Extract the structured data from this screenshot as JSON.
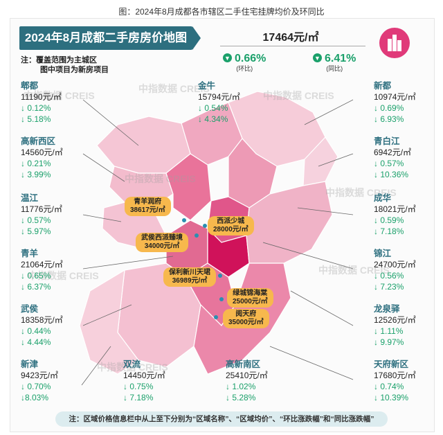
{
  "figure_caption": "图：2024年8月成都各市辖区二手住宅挂牌均价及环同比",
  "header": {
    "title": "2024年8月成都二手房房价地图"
  },
  "note": {
    "line1": "注：覆盖范围为主城区",
    "line2": "图中项目为新房项目"
  },
  "summary": {
    "price": "17464元/㎡",
    "mom_value": "0.66%",
    "mom_label": "(环比)",
    "yoy_value": "6.41%",
    "yoy_label": "(同比)"
  },
  "districts": {
    "pidu": {
      "name": "郫都",
      "price": "11190元/㎡",
      "mom": "↓ 0.12%",
      "yoy": "↓ 5.18%"
    },
    "gaoxinxi": {
      "name": "高新西区",
      "price": "14560元/㎡",
      "mom": "↓ 0.21%",
      "yoy": "↓ 3.99%"
    },
    "wenjiang": {
      "name": "温江",
      "price": "11776元/㎡",
      "mom": "↓ 0.57%",
      "yoy": "↓ 5.97%"
    },
    "qingyang": {
      "name": "青羊",
      "price": "21064元/㎡",
      "mom": "↓ 0.65%",
      "yoy": "↓ 6.37%"
    },
    "wuhou": {
      "name": "武侯",
      "price": "18358元/㎡",
      "mom": "↓ 0.44%",
      "yoy": "↓ 4.44%"
    },
    "xinjin": {
      "name": "新津",
      "price": "9423元/㎡",
      "mom": "↓ 0.70%",
      "yoy": "↓8.03%"
    },
    "shuangliu": {
      "name": "双流",
      "price": "14450元/㎡",
      "mom": "↓ 0.75%",
      "yoy": "↓ 7.18%"
    },
    "gaoxinnan": {
      "name": "高新南区",
      "price": "25410元/㎡",
      "mom": "↓ 1.02%",
      "yoy": "↓ 5.28%"
    },
    "tianfuxin": {
      "name": "天府新区",
      "price": "17680元/㎡",
      "mom": "↓ 0.74%",
      "yoy": "↓ 10.39%"
    },
    "longquanyi": {
      "name": "龙泉驿",
      "price": "12526元/㎡",
      "mom": "↓ 1.11%",
      "yoy": "↓ 9.97%"
    },
    "jinjiang": {
      "name": "锦江",
      "price": "24700元/㎡",
      "mom": "↓ 0.56%",
      "yoy": "↓ 7.23%"
    },
    "chenghua": {
      "name": "成华",
      "price": "18021元/㎡",
      "mom": "↓ 0.59%",
      "yoy": "↓ 7.18%"
    },
    "qingbaijiang": {
      "name": "青白江",
      "price": "6942元/㎡",
      "mom": "↓ 0.57%",
      "yoy": "↓ 10.36%"
    },
    "xindu": {
      "name": "新都",
      "price": "10974元/㎡",
      "mom": "↓ 0.69%",
      "yoy": "↓ 6.93%"
    },
    "jinniu": {
      "name": "金牛",
      "price": "15794元/㎡",
      "mom": "↓ 0.54%",
      "yoy": "↓ 4.34%"
    }
  },
  "projects": [
    {
      "name": "青羊润府",
      "price": "38617元/㎡"
    },
    {
      "name": "西派少城",
      "price": "28000元/㎡"
    },
    {
      "name": "武侯西派臻境",
      "price": "34000元/㎡"
    },
    {
      "name": "保利新川天珺",
      "price": "36989元/㎡"
    },
    {
      "name": "绿城锦海棠",
      "price": "25000元/㎡"
    },
    {
      "name": "阅天府",
      "price": "35000元/㎡"
    }
  ],
  "watermark": "中指数据 CREIS",
  "footer": "注：区域价格信息栏中从上至下分别为“区域名称”、“区域均价”、“环比涨跌幅”和“同比涨跌幅”",
  "colors": {
    "header_bg": "#2d6f7f",
    "down": "#1aa06a",
    "project_tag": "#f7b84d",
    "map_core": "#d81b60",
    "map_light": "#f4c6d6"
  }
}
